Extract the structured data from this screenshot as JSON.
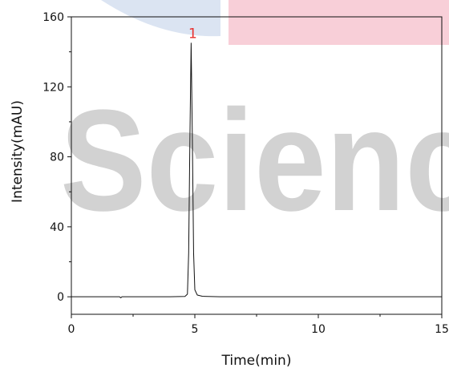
{
  "colors": {
    "background": "#ffffff",
    "axis": "#111111",
    "trace": "#111111",
    "peak_label": "#e8302f",
    "watermark_blue": "#dbe4f2",
    "watermark_pink": "#f8cfd8",
    "watermark_text": "#d2d2d2"
  },
  "watermark": {
    "text": "Scienc"
  },
  "chart_data": {
    "type": "line",
    "title": "",
    "xlabel": "Time(min)",
    "ylabel": "Intensity(mAU)",
    "xlim": [
      0,
      15
    ],
    "ylim": [
      -10,
      160
    ],
    "x_ticks": [
      0,
      5,
      10,
      15
    ],
    "x_tick_labels": [
      "0",
      "5",
      "10",
      "15"
    ],
    "y_ticks": [
      0,
      40,
      80,
      120,
      160
    ],
    "y_tick_labels": [
      "0",
      "40",
      "80",
      "120",
      "160"
    ],
    "grid": false,
    "legend": "none",
    "series": [
      {
        "x": [
          0,
          1.0,
          1.95,
          2.0,
          2.05,
          3.0,
          4.0,
          4.6,
          4.7,
          4.75,
          4.8,
          4.85,
          4.9,
          4.95,
          5.0,
          5.1,
          5.3,
          6.0,
          8.0,
          10.0,
          12.0,
          14.0,
          15.0
        ],
        "y": [
          0,
          0,
          0,
          -0.6,
          0,
          0,
          0,
          0.2,
          1.5,
          25,
          90,
          145,
          90,
          25,
          4,
          1,
          0.3,
          0,
          0,
          0,
          0,
          0,
          0
        ]
      }
    ],
    "annotations": [
      {
        "text": "1",
        "x": 4.85,
        "y": 145
      }
    ]
  }
}
